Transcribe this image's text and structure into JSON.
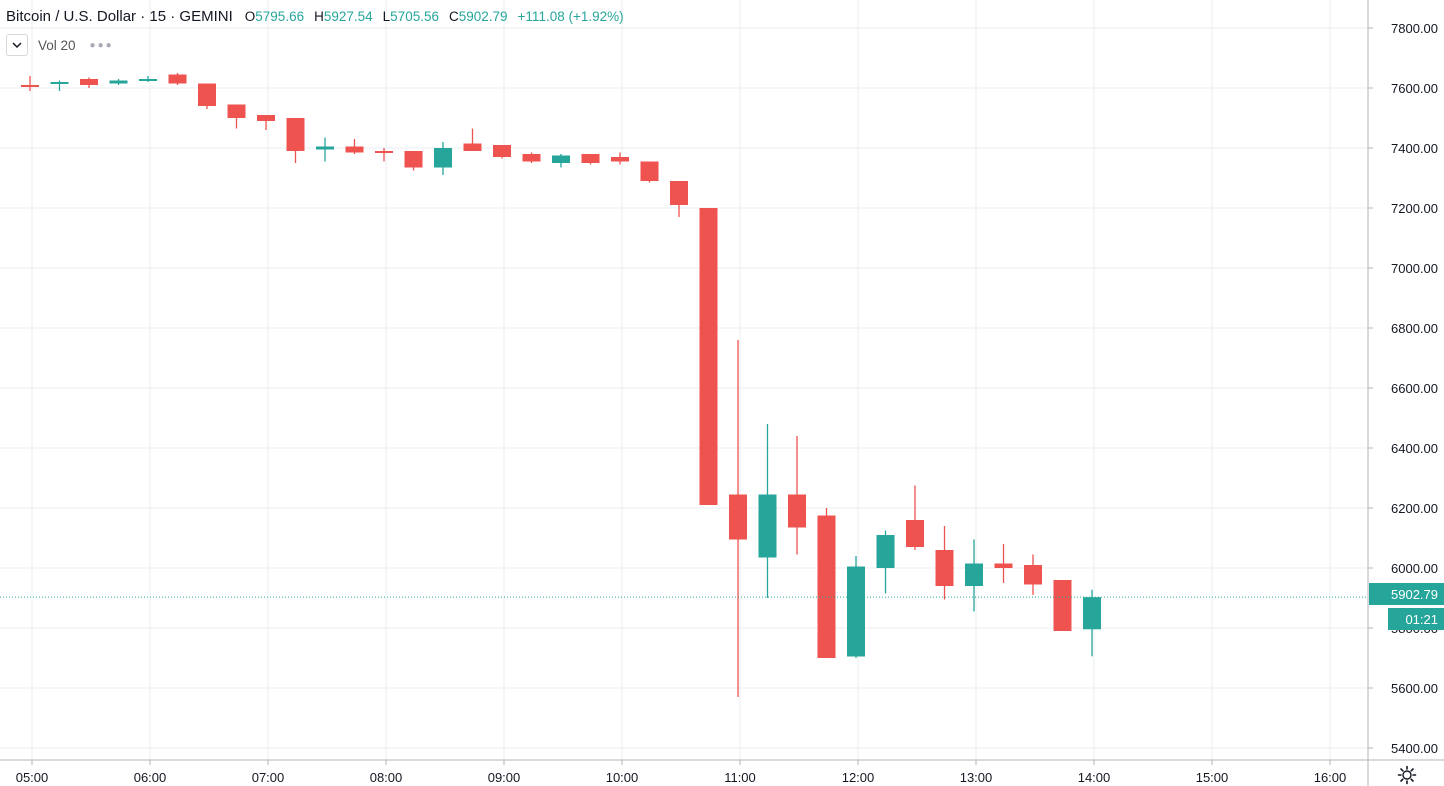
{
  "header": {
    "symbol": "Bitcoin / U.S. Dollar",
    "interval": "15",
    "exchange": "GEMINI",
    "open_label": "O",
    "open": "5795.66",
    "high_label": "H",
    "high": "5927.54",
    "low_label": "L",
    "low": "5705.56",
    "close_label": "C",
    "close": "5902.79",
    "change": "+111.08 (+1.92%)"
  },
  "volume_indicator": {
    "label": "Vol 20"
  },
  "price_tag": {
    "last_price": "5902.79",
    "countdown": "01:21"
  },
  "icons": {
    "collapse": "chevron-down-icon",
    "more": "more-dots-icon",
    "settings": "gear-icon"
  },
  "colors": {
    "up": "#26a69a",
    "down": "#ef5350",
    "grid": "#e9eef1",
    "text": "#131722"
  },
  "chart_data": {
    "type": "candlestick",
    "title": "Bitcoin / U.S. Dollar",
    "x_tick_labels": [
      "05:00",
      "06:00",
      "07:00",
      "08:00",
      "09:00",
      "10:00",
      "11:00",
      "12:00",
      "13:00",
      "14:00",
      "15:00",
      "16:00"
    ],
    "y_tick_labels": [
      "7800.00",
      "7600.00",
      "7400.00",
      "7200.00",
      "7000.00",
      "6800.00",
      "6600.00",
      "6400.00",
      "6200.00",
      "6000.00",
      "5800.00",
      "5600.00",
      "5400.00"
    ],
    "ylim": [
      5380,
      7860
    ],
    "grid": true,
    "candles": [
      {
        "t": "05:00",
        "o": 7610,
        "h": 7640,
        "l": 7590,
        "c": 7605
      },
      {
        "t": "05:15",
        "o": 7615,
        "h": 7625,
        "l": 7590,
        "c": 7620
      },
      {
        "t": "05:30",
        "o": 7630,
        "h": 7635,
        "l": 7600,
        "c": 7610
      },
      {
        "t": "05:45",
        "o": 7615,
        "h": 7630,
        "l": 7610,
        "c": 7625
      },
      {
        "t": "06:00",
        "o": 7625,
        "h": 7640,
        "l": 7620,
        "c": 7630
      },
      {
        "t": "06:15",
        "o": 7645,
        "h": 7650,
        "l": 7610,
        "c": 7615
      },
      {
        "t": "06:30",
        "o": 7615,
        "h": 7615,
        "l": 7530,
        "c": 7540
      },
      {
        "t": "06:45",
        "o": 7545,
        "h": 7545,
        "l": 7465,
        "c": 7500
      },
      {
        "t": "07:00",
        "o": 7510,
        "h": 7510,
        "l": 7460,
        "c": 7490
      },
      {
        "t": "07:15",
        "o": 7500,
        "h": 7500,
        "l": 7350,
        "c": 7390
      },
      {
        "t": "07:30",
        "o": 7395,
        "h": 7435,
        "l": 7355,
        "c": 7405
      },
      {
        "t": "07:45",
        "o": 7405,
        "h": 7430,
        "l": 7380,
        "c": 7385
      },
      {
        "t": "08:00",
        "o": 7390,
        "h": 7400,
        "l": 7355,
        "c": 7385
      },
      {
        "t": "08:15",
        "o": 7390,
        "h": 7390,
        "l": 7325,
        "c": 7335
      },
      {
        "t": "08:30",
        "o": 7335,
        "h": 7420,
        "l": 7310,
        "c": 7400
      },
      {
        "t": "08:45",
        "o": 7415,
        "h": 7465,
        "l": 7390,
        "c": 7390
      },
      {
        "t": "09:00",
        "o": 7410,
        "h": 7410,
        "l": 7365,
        "c": 7370
      },
      {
        "t": "09:15",
        "o": 7380,
        "h": 7385,
        "l": 7350,
        "c": 7355
      },
      {
        "t": "09:30",
        "o": 7350,
        "h": 7380,
        "l": 7335,
        "c": 7375
      },
      {
        "t": "09:45",
        "o": 7380,
        "h": 7380,
        "l": 7345,
        "c": 7350
      },
      {
        "t": "10:00",
        "o": 7370,
        "h": 7385,
        "l": 7345,
        "c": 7355
      },
      {
        "t": "10:15",
        "o": 7355,
        "h": 7355,
        "l": 7285,
        "c": 7290
      },
      {
        "t": "10:30",
        "o": 7290,
        "h": 7290,
        "l": 7170,
        "c": 7210
      },
      {
        "t": "10:45",
        "o": 7200,
        "h": 7200,
        "l": 6210,
        "c": 6210
      },
      {
        "t": "11:00",
        "o": 6245,
        "h": 6760,
        "l": 5570,
        "c": 6095
      },
      {
        "t": "11:15",
        "o": 6035,
        "h": 6480,
        "l": 5900,
        "c": 6245
      },
      {
        "t": "11:30",
        "o": 6245,
        "h": 6440,
        "l": 6045,
        "c": 6135
      },
      {
        "t": "11:45",
        "o": 6175,
        "h": 6200,
        "l": 5700,
        "c": 5700
      },
      {
        "t": "12:00",
        "o": 5705,
        "h": 6040,
        "l": 5700,
        "c": 6005
      },
      {
        "t": "12:15",
        "o": 6000,
        "h": 6125,
        "l": 5915,
        "c": 6110
      },
      {
        "t": "12:30",
        "o": 6160,
        "h": 6275,
        "l": 6060,
        "c": 6070
      },
      {
        "t": "12:45",
        "o": 6060,
        "h": 6140,
        "l": 5895,
        "c": 5940
      },
      {
        "t": "13:00",
        "o": 5940,
        "h": 6095,
        "l": 5855,
        "c": 6015
      },
      {
        "t": "13:15",
        "o": 6015,
        "h": 6080,
        "l": 5950,
        "c": 6000
      },
      {
        "t": "13:30",
        "o": 6010,
        "h": 6045,
        "l": 5910,
        "c": 5945
      },
      {
        "t": "13:45",
        "o": 5960,
        "h": 5960,
        "l": 5790,
        "c": 5790
      },
      {
        "t": "14:00",
        "o": 5795.66,
        "h": 5927.54,
        "l": 5705.56,
        "c": 5902.79
      }
    ]
  }
}
